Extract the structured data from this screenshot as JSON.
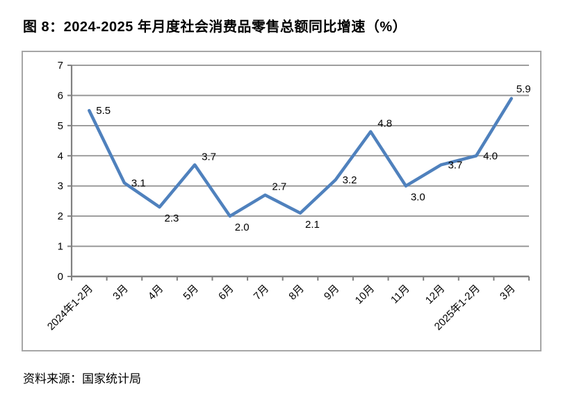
{
  "title": "图 8：2024-2025 年月度社会消费品零售总额同比增速（%）",
  "source": "资料来源：国家统计局",
  "chart_data": {
    "type": "line",
    "title": "图 8：2024-2025 年月度社会消费品零售总额同比增速（%）",
    "categories": [
      "2024年1-2月",
      "3月",
      "4月",
      "5月",
      "6月",
      "7月",
      "8月",
      "9月",
      "10月",
      "11月",
      "12月",
      "2025年1-2月",
      "3月"
    ],
    "values": [
      5.5,
      3.1,
      2.3,
      3.7,
      2.0,
      2.7,
      2.1,
      3.2,
      4.8,
      3.0,
      3.7,
      4.0,
      5.9
    ],
    "data_labels": [
      "5.5",
      "3.1",
      "2.3",
      "3.7",
      "2.0",
      "2.7",
      "2.1",
      "3.2",
      "4.8",
      "3.0",
      "3.7",
      "4.0",
      "5.9"
    ],
    "xlabel": "",
    "ylabel": "",
    "ylim": [
      0,
      7
    ],
    "yticks": [
      "0",
      "1",
      "2",
      "3",
      "4",
      "5",
      "6",
      "7"
    ],
    "grid": true,
    "legend": "none",
    "line_color": "#4F81BD",
    "gridline_color": "#919191",
    "axis_color": "#808080",
    "frame_color": "#a6a6a6",
    "label_color": "#000000"
  }
}
